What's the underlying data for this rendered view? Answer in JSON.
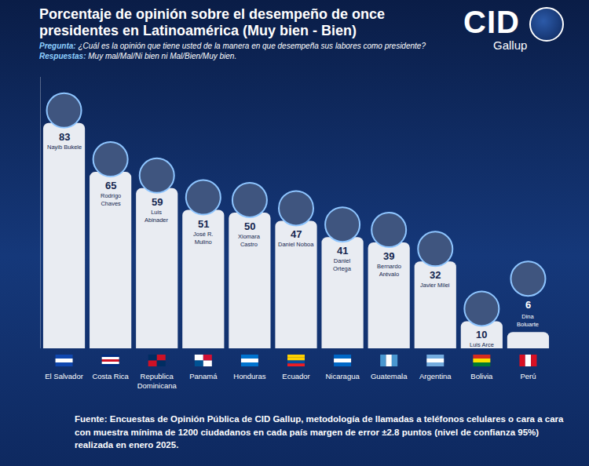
{
  "chart_data": {
    "type": "bar",
    "title": "Porcentaje de opinión sobre el desempeño de once presidentes en Latinoamérica (Muy bien - Bien)",
    "subtitle": [
      {
        "label": "Pregunta:",
        "text": "¿Cuál es la opinión que tiene usted de la manera en que desempeña sus labores como presidente?"
      },
      {
        "label": "Respuestas:",
        "text": "Muy mal/Mal/Ni bien ni Mal/Bien/Muy bien."
      }
    ],
    "categories": [
      "El Salvador",
      "Costa Rica",
      "Republica Dominicana",
      "Panamá",
      "Honduras",
      "Ecuador",
      "Nicaragua",
      "Guatemala",
      "Argentina",
      "Bolivia",
      "Perú"
    ],
    "values": [
      83,
      65,
      59,
      51,
      50,
      47,
      41,
      39,
      32,
      10,
      6
    ],
    "annotations": [
      "Nayib Bukele",
      "Rodrigo Chaves",
      "Luis Abinader",
      "José R. Mulino",
      "Xiomara Castro",
      "Daniel Noboa",
      "Daniel Ortega",
      "Bernardo Arévalo",
      "Javier Milei",
      "Luis Arce",
      "Dina Boluarte"
    ],
    "color": "#e9ecf2",
    "ylim": [
      0,
      100
    ],
    "grid": false,
    "tick_labels": "x",
    "data_labels": true,
    "source": "Fuente: Encuestas de Opinión Pública de CID Gallup, metodología de llamadas a teléfonos celulares o cara a cara con muestra mínima de 1200 ciudadanos en cada país margen de error ±2.8 puntos (nivel de confianza 95%) realizada en enero 2025."
  },
  "logo": {
    "text": "CID",
    "subtext": "Gallup"
  }
}
